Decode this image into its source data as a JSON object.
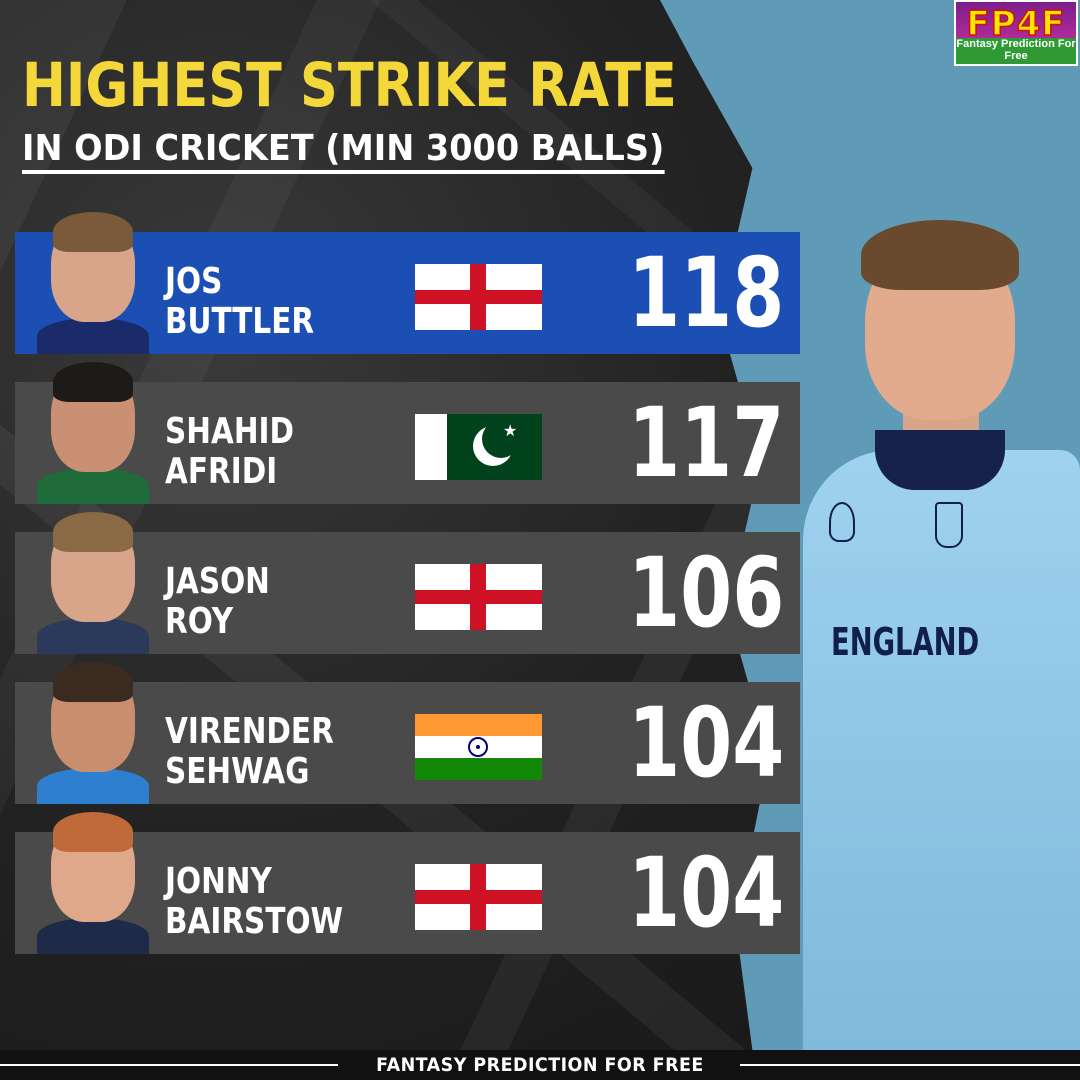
{
  "logo": {
    "mark": "FP4F",
    "tagline": "Fantasy Prediction For Free"
  },
  "header": {
    "title": "HIGHEST STRIKE RATE",
    "subtitle": "IN ODI CRICKET (MIN 3000 BALLS)"
  },
  "players": [
    {
      "first": "JOS",
      "last": "BUTTLER",
      "flag": "england-flag",
      "strike_rate": "118"
    },
    {
      "first": "SHAHID",
      "last": "AFRIDI",
      "flag": "pakistan-flag",
      "strike_rate": "117"
    },
    {
      "first": "JASON",
      "last": "ROY",
      "flag": "england-flag",
      "strike_rate": "106"
    },
    {
      "first": "VIRENDER",
      "last": "SEHWAG",
      "flag": "india-flag",
      "strike_rate": "104"
    },
    {
      "first": "JONNY",
      "last": "BAIRSTOW",
      "flag": "england-flag",
      "strike_rate": "104"
    }
  ],
  "hero": {
    "jersey_text": "ENGLAND"
  },
  "footer": {
    "text": "FANTASY PREDICTION FOR FREE"
  },
  "colors": {
    "title_yellow": "#f4d83a",
    "highlight_row": "#1c4fb4",
    "row_grey": "#4a4a4a",
    "panel_blue": "#5f9bb6"
  }
}
